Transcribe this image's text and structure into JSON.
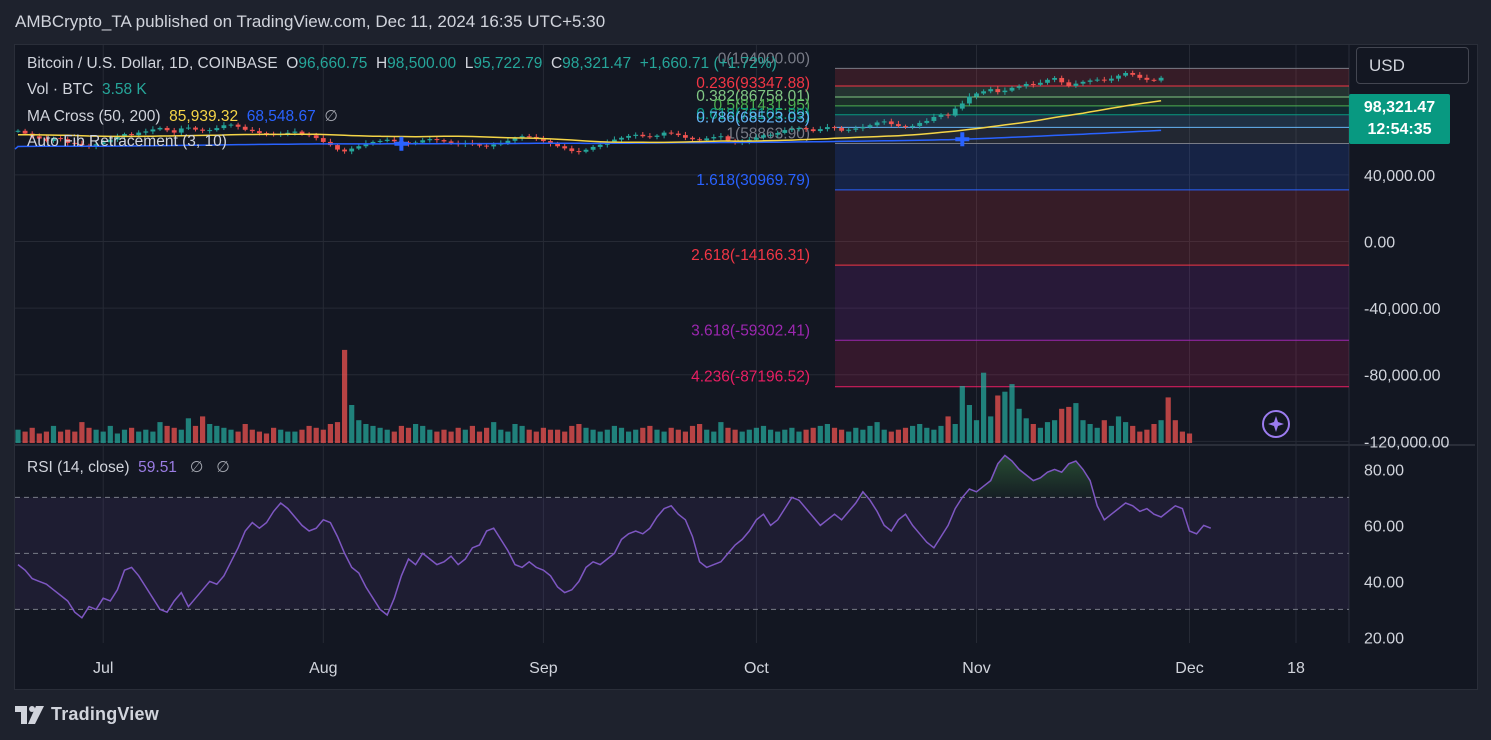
{
  "header": {
    "published": "AMBCrypto_TA published on TradingView.com, Dec 11, 2024 16:35 UTC+5:30"
  },
  "currency_button": "USD",
  "legend": {
    "symbol": "Bitcoin / U.S. Dollar, 1D, COINBASE",
    "o_label": "O",
    "o_value": "96,660.75",
    "h_label": "H",
    "h_value": "98,500.00",
    "l_label": "L",
    "l_value": "95,722.79",
    "c_label": "C",
    "c_value": "98,321.47",
    "change": "+1,660.71 (+1.72%)",
    "vol_label": "Vol · BTC",
    "vol_value": "3.58 K",
    "ma_label": "MA Cross (50, 200)",
    "ma_fast": "85,939.32",
    "ma_slow": "68,548.67",
    "ma_extra": "∅",
    "fib_label": "Auto Fib Retracement (3, 10)",
    "rsi_label": "RSI (14, close)",
    "rsi_value": "59.51",
    "rsi_extra1": "∅",
    "rsi_extra2": "∅"
  },
  "price_tag": {
    "price": "98,321.47",
    "countdown": "12:54:35"
  },
  "brand": "TradingView",
  "chart_data": {
    "type": "candlestick",
    "price_axis": {
      "ticks": [
        "40,000.00",
        "0.00",
        "-40,000.00",
        "-80,000.00",
        "-120,000.00"
      ],
      "tick_values": [
        40000,
        0,
        -40000,
        -80000,
        -120000
      ],
      "range": [
        -121000,
        118000
      ]
    },
    "x_axis": {
      "ticks": [
        "Jul",
        "Aug",
        "Sep",
        "Oct",
        "Nov",
        "Dec",
        "18"
      ],
      "tick_days": [
        12,
        43,
        74,
        104,
        135,
        165,
        180
      ]
    },
    "fib_levels": [
      {
        "label": "0(104000.00)",
        "value": 104000,
        "color": "#787b86"
      },
      {
        "label": "0.236(93347.88)",
        "value": 93347.88,
        "color": "#f23645"
      },
      {
        "label": "0.382(86758.01)",
        "value": 86758.01,
        "color": "#81c784"
      },
      {
        "label": "0.5(81431.95)",
        "value": 81431.95,
        "color": "#4caf50"
      },
      {
        "label": "0.618(76105.89)",
        "value": 76105.89,
        "color": "#089981"
      },
      {
        "label": "0.786(68523.03)",
        "value": 68523.03,
        "color": "#64b5f6"
      },
      {
        "label": "1(58863.90)",
        "value": 58863.9,
        "color": "#787b86"
      },
      {
        "label": "1.618(30969.79)",
        "value": 30969.79,
        "color": "#2962ff"
      },
      {
        "label": "2.618(-14166.31)",
        "value": -14166.31,
        "color": "#f23645"
      },
      {
        "label": "3.618(-59302.41)",
        "value": -59302.41,
        "color": "#9c27b0"
      },
      {
        "label": "4.236(-87196.52)",
        "value": -87196.52,
        "color": "#e91e63"
      }
    ],
    "price_close": [
      66500,
      64800,
      63200,
      61800,
      60400,
      62100,
      61500,
      59200,
      58600,
      57800,
      57100,
      58400,
      59600,
      61200,
      62800,
      64500,
      63900,
      65400,
      66100,
      67300,
      68200,
      66800,
      65400,
      67900,
      68400,
      67200,
      66500,
      66900,
      68100,
      69800,
      70200,
      68900,
      67100,
      66300,
      65100,
      64800,
      63900,
      64600,
      65300,
      66000,
      64500,
      63800,
      62100,
      59800,
      57900,
      55200,
      54100,
      55800,
      57200,
      58900,
      59800,
      60400,
      61100,
      60200,
      59500,
      58700,
      59400,
      60800,
      61500,
      60900,
      60100,
      59200,
      58400,
      59100,
      58300,
      57600,
      57100,
      58200,
      59100,
      60500,
      62100,
      63200,
      62800,
      61500,
      60300,
      58700,
      57200,
      55900,
      54300,
      53900,
      55100,
      56800,
      58100,
      59600,
      61200,
      62300,
      63400,
      64100,
      63200,
      62800,
      63600,
      65400,
      64800,
      63900,
      62300,
      61400,
      60800,
      61900,
      62700,
      63200,
      60500,
      59300,
      60100,
      61100,
      62400,
      63800,
      64100,
      65200,
      66900,
      67500,
      68200,
      67400,
      66300,
      67500,
      68700,
      68200,
      66500,
      67100,
      67900,
      68700,
      69800,
      71500,
      72100,
      70500,
      69300,
      68800,
      69400,
      71200,
      72400,
      74800,
      76200,
      75600,
      79800,
      82900,
      87100,
      88900,
      90200,
      91500,
      89700,
      90600,
      92300,
      93200,
      94600,
      94100,
      95300,
      97100,
      98200,
      95600,
      93400,
      94800,
      95900,
      96700,
      97200,
      96600,
      97800,
      99600,
      101200,
      100100,
      98300,
      97100,
      96660,
      98321
    ],
    "volume": [
      0.35,
      0.3,
      0.4,
      0.25,
      0.3,
      0.45,
      0.3,
      0.35,
      0.3,
      0.55,
      0.4,
      0.35,
      0.3,
      0.45,
      0.25,
      0.35,
      0.4,
      0.3,
      0.35,
      0.3,
      0.55,
      0.45,
      0.4,
      0.35,
      0.65,
      0.45,
      0.7,
      0.5,
      0.45,
      0.4,
      0.35,
      0.3,
      0.5,
      0.35,
      0.3,
      0.25,
      0.4,
      0.35,
      0.3,
      0.3,
      0.35,
      0.45,
      0.4,
      0.35,
      0.5,
      0.55,
      2.45,
      1.0,
      0.6,
      0.5,
      0.45,
      0.4,
      0.35,
      0.3,
      0.45,
      0.4,
      0.5,
      0.45,
      0.35,
      0.3,
      0.35,
      0.3,
      0.4,
      0.35,
      0.45,
      0.3,
      0.4,
      0.55,
      0.35,
      0.3,
      0.5,
      0.45,
      0.35,
      0.3,
      0.4,
      0.35,
      0.35,
      0.3,
      0.45,
      0.5,
      0.4,
      0.35,
      0.3,
      0.35,
      0.45,
      0.4,
      0.3,
      0.35,
      0.4,
      0.45,
      0.35,
      0.3,
      0.4,
      0.35,
      0.3,
      0.45,
      0.5,
      0.35,
      0.3,
      0.55,
      0.4,
      0.35,
      0.3,
      0.35,
      0.4,
      0.45,
      0.35,
      0.3,
      0.35,
      0.4,
      0.3,
      0.35,
      0.4,
      0.45,
      0.5,
      0.4,
      0.35,
      0.3,
      0.4,
      0.35,
      0.45,
      0.55,
      0.35,
      0.3,
      0.35,
      0.4,
      0.45,
      0.5,
      0.4,
      0.35,
      0.45,
      0.7,
      0.5,
      1.5,
      1.0,
      0.6,
      1.85,
      0.7,
      1.25,
      1.35,
      1.55,
      0.9,
      0.65,
      0.5,
      0.4,
      0.55,
      0.6,
      0.9,
      0.95,
      1.05,
      0.6,
      0.5,
      0.4,
      0.6,
      0.45,
      0.7,
      0.55,
      0.45,
      0.3,
      0.35,
      0.5,
      0.6,
      1.2,
      0.6,
      0.3,
      0.25
    ],
    "rsi": {
      "ticks": [
        "80.00",
        "60.00",
        "40.00",
        "20.00"
      ],
      "tick_values": [
        80,
        60,
        40,
        20
      ],
      "overbought": 70,
      "oversold": 30,
      "values": [
        46,
        44,
        41,
        40,
        39,
        37,
        35,
        33,
        29,
        27,
        31,
        30,
        34,
        33,
        37,
        44,
        45,
        42,
        38,
        34,
        30,
        29,
        33,
        36,
        31,
        34,
        37,
        40,
        39,
        42,
        47,
        52,
        58,
        61,
        59,
        61,
        65,
        68,
        66,
        63,
        60,
        58,
        59,
        62,
        61,
        56,
        50,
        45,
        43,
        38,
        34,
        30,
        28,
        34,
        42,
        48,
        46,
        50,
        48,
        46,
        47,
        49,
        46,
        48,
        52,
        53,
        58,
        59,
        55,
        51,
        46,
        45,
        47,
        45,
        44,
        42,
        38,
        36,
        37,
        40,
        45,
        47,
        46,
        48,
        50,
        55,
        57,
        58,
        57,
        59,
        63,
        66,
        67,
        64,
        62,
        56,
        47,
        45,
        46,
        47,
        50,
        53,
        55,
        58,
        62,
        64,
        60,
        62,
        66,
        70,
        69,
        66,
        63,
        60,
        62,
        64,
        62,
        65,
        68,
        72,
        69,
        65,
        60,
        58,
        62,
        64,
        60,
        57,
        54,
        52,
        56,
        60,
        66,
        70,
        73,
        72,
        74,
        76,
        82,
        85,
        83,
        80,
        78,
        76,
        77,
        79,
        80,
        79,
        82,
        83,
        80,
        76,
        67,
        62,
        64,
        66,
        68,
        67,
        65,
        66,
        64,
        63,
        65,
        67,
        66,
        58,
        57,
        60,
        59
      ]
    },
    "ma_fast_label": "MA 50",
    "ma_slow_label": "MA 200",
    "colors": {
      "up": "#26a69a",
      "down": "#ef5350",
      "ma_fast": "#f5d547",
      "ma_slow": "#2962ff",
      "rsi": "#7e57c2"
    }
  }
}
